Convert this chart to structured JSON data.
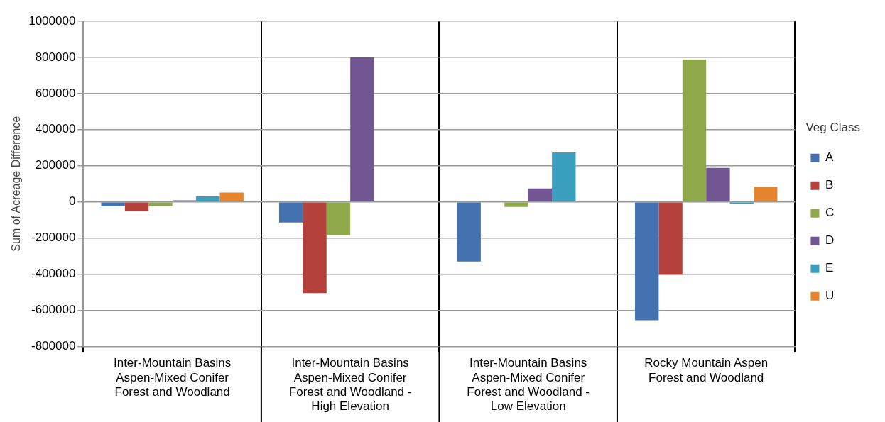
{
  "chart_data": {
    "type": "bar",
    "ylabel": "Sum of Acreage Difference",
    "legend_title": "Veg Class",
    "categories": [
      "Inter-Mountain Basins Aspen-Mixed Conifer Forest and Woodland",
      "Inter-Mountain Basins Aspen-Mixed Conifer Forest and Woodland - High Elevation",
      "Inter-Mountain Basins Aspen-Mixed Conifer Forest and Woodland - Low Elevation",
      "Rocky Mountain Aspen Forest and Woodland"
    ],
    "series": [
      {
        "name": "A",
        "color": "#4472b0",
        "values": [
          -25000,
          -114000,
          -330000,
          -655000
        ]
      },
      {
        "name": "B",
        "color": "#b5413c",
        "values": [
          -52000,
          -505000,
          null,
          -403000
        ]
      },
      {
        "name": "C",
        "color": "#8ea84a",
        "values": [
          -22000,
          -184000,
          -28000,
          788000
        ]
      },
      {
        "name": "D",
        "color": "#715592",
        "values": [
          9000,
          800000,
          74000,
          188000
        ]
      },
      {
        "name": "E",
        "color": "#3a9ebf",
        "values": [
          30000,
          null,
          274000,
          -10000
        ]
      },
      {
        "name": "U",
        "color": "#e5832f",
        "values": [
          52000,
          null,
          null,
          84000
        ]
      }
    ],
    "ylim": [
      -800000,
      1000000
    ],
    "yticks": [
      -800000,
      -600000,
      -400000,
      -200000,
      0,
      200000,
      400000,
      600000,
      800000,
      1000000
    ],
    "grid": "y",
    "legend": "right"
  }
}
